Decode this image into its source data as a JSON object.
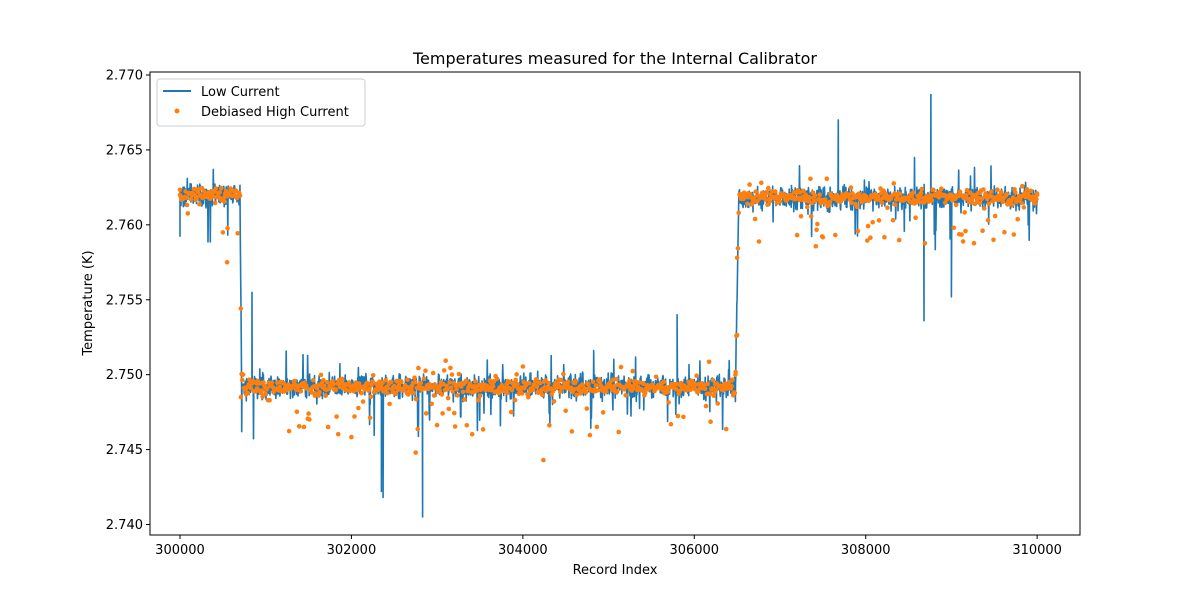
{
  "chart_data": {
    "type": "line",
    "title": "Temperatures measured for the Internal Calibrator",
    "xlabel": "Record Index",
    "ylabel": "Temperature (K)",
    "xlim": [
      299650,
      310500
    ],
    "ylim": [
      2.7393,
      2.7702
    ],
    "xticks": [
      300000,
      302000,
      304000,
      306000,
      308000,
      310000
    ],
    "xtick_labels": [
      "300000",
      "302000",
      "304000",
      "306000",
      "308000",
      "310000"
    ],
    "yticks": [
      2.74,
      2.745,
      2.75,
      2.755,
      2.76,
      2.765,
      2.77
    ],
    "ytick_labels": [
      "2.740",
      "2.745",
      "2.750",
      "2.755",
      "2.760",
      "2.765",
      "2.770"
    ],
    "grid": false,
    "legend": "upper-left",
    "x_range": [
      300000,
      310000
    ],
    "segments": [
      {
        "x_start": 300000,
        "x_end": 300700,
        "level": 2.762
      },
      {
        "x_start": 300720,
        "x_end": 306480,
        "level": 2.7492
      },
      {
        "x_start": 306520,
        "x_end": 310000,
        "level": 2.7618
      }
    ],
    "series": [
      {
        "name": "Low Current",
        "style": "line",
        "color": "#1f77b4",
        "notable_points": [
          {
            "x": 300000,
            "y": 2.762
          },
          {
            "x": 300700,
            "y": 2.762
          },
          {
            "x": 300720,
            "y": 2.7462
          },
          {
            "x": 300840,
            "y": 2.7555
          },
          {
            "x": 302350,
            "y": 2.7422
          },
          {
            "x": 302370,
            "y": 2.7418
          },
          {
            "x": 302830,
            "y": 2.7405
          },
          {
            "x": 305800,
            "y": 2.754
          },
          {
            "x": 306480,
            "y": 2.7482
          },
          {
            "x": 306520,
            "y": 2.7622
          },
          {
            "x": 307680,
            "y": 2.767
          },
          {
            "x": 308680,
            "y": 2.7536
          },
          {
            "x": 308760,
            "y": 2.7687
          },
          {
            "x": 309000,
            "y": 2.7552
          },
          {
            "x": 310000,
            "y": 2.7618
          }
        ]
      },
      {
        "name": "Debiased High Current",
        "style": "scatter",
        "color": "#ff7f0e",
        "notable_points": [
          {
            "x": 300000,
            "y": 2.762
          },
          {
            "x": 300550,
            "y": 2.7575
          },
          {
            "x": 300710,
            "y": 2.7485
          },
          {
            "x": 302750,
            "y": 2.7448
          },
          {
            "x": 304240,
            "y": 2.7443
          },
          {
            "x": 306480,
            "y": 2.75
          },
          {
            "x": 306500,
            "y": 2.7578
          },
          {
            "x": 310000,
            "y": 2.762
          }
        ]
      }
    ]
  }
}
